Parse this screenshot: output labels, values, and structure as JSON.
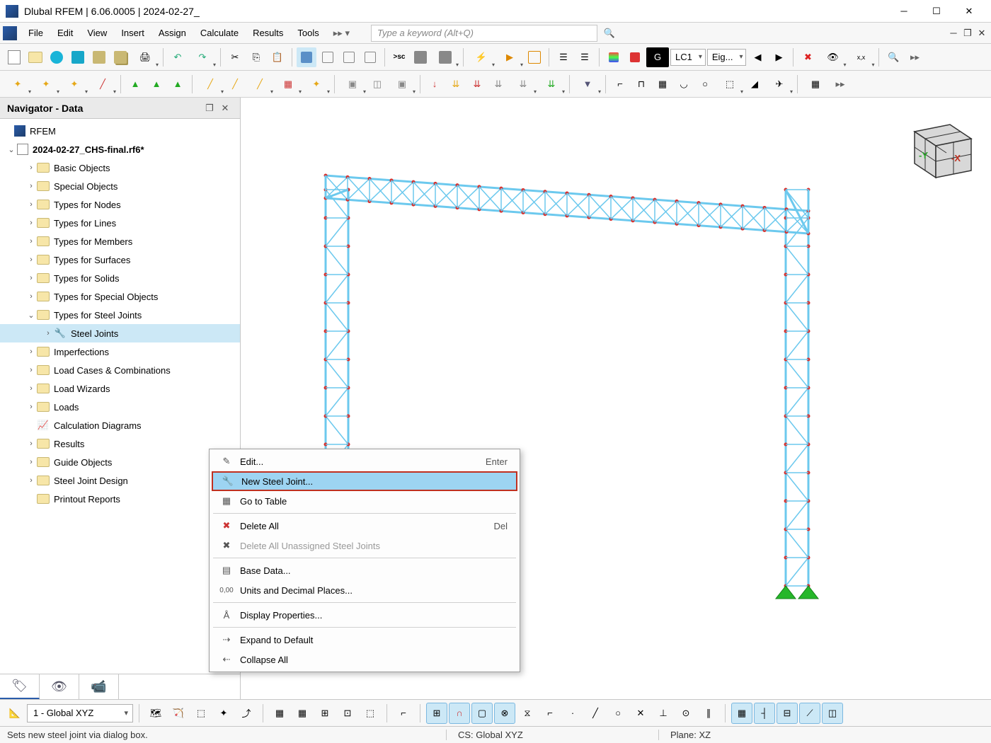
{
  "window": {
    "title": "Dlubal RFEM | 6.06.0005 | 2024-02-27_"
  },
  "menubar": {
    "items": [
      "File",
      "Edit",
      "View",
      "Insert",
      "Assign",
      "Calculate",
      "Results",
      "Tools"
    ],
    "search_placeholder": "Type a keyword (Alt+Q)"
  },
  "toolbar_top": {
    "combo_g": "G",
    "combo_lc": "LC1",
    "combo_eig": "Eig..."
  },
  "sidebar": {
    "title": "Navigator - Data",
    "root": "RFEM",
    "file": "2024-02-27_CHS-final.rf6*",
    "items": [
      "Basic Objects",
      "Special Objects",
      "Types for Nodes",
      "Types for Lines",
      "Types for Members",
      "Types for Surfaces",
      "Types for Solids",
      "Types for Special Objects",
      "Types for Steel Joints",
      "Steel Joints",
      "Imperfections",
      "Load Cases & Combinations",
      "Load Wizards",
      "Loads",
      "Calculation Diagrams",
      "Results",
      "Guide Objects",
      "Steel Joint Design",
      "Printout Reports"
    ]
  },
  "context_menu": {
    "edit": "Edit...",
    "edit_shortcut": "Enter",
    "new_joint": "New Steel Joint...",
    "goto": "Go to Table",
    "delete_all": "Delete All",
    "delete_shortcut": "Del",
    "delete_unassigned": "Delete All Unassigned Steel Joints",
    "base_data": "Base Data...",
    "units": "Units and Decimal Places...",
    "display_props": "Display Properties...",
    "expand": "Expand to Default",
    "collapse": "Collapse All"
  },
  "bottom_bar": {
    "plane_combo": "1 - Global XYZ"
  },
  "status_bar": {
    "hint": "Sets new steel joint via dialog box.",
    "cs": "CS: Global XYZ",
    "plane": "Plane: XZ"
  },
  "colors": {
    "truss_stroke": "#6cc9ee",
    "truss_fill": "#b6e7f7",
    "node_red": "#d9302c",
    "support_green": "#26b72a",
    "cube_face": "#d8d8d8",
    "cube_edge": "#333333",
    "axis_y": "#2aa52a",
    "axis_x": "#c03020"
  }
}
